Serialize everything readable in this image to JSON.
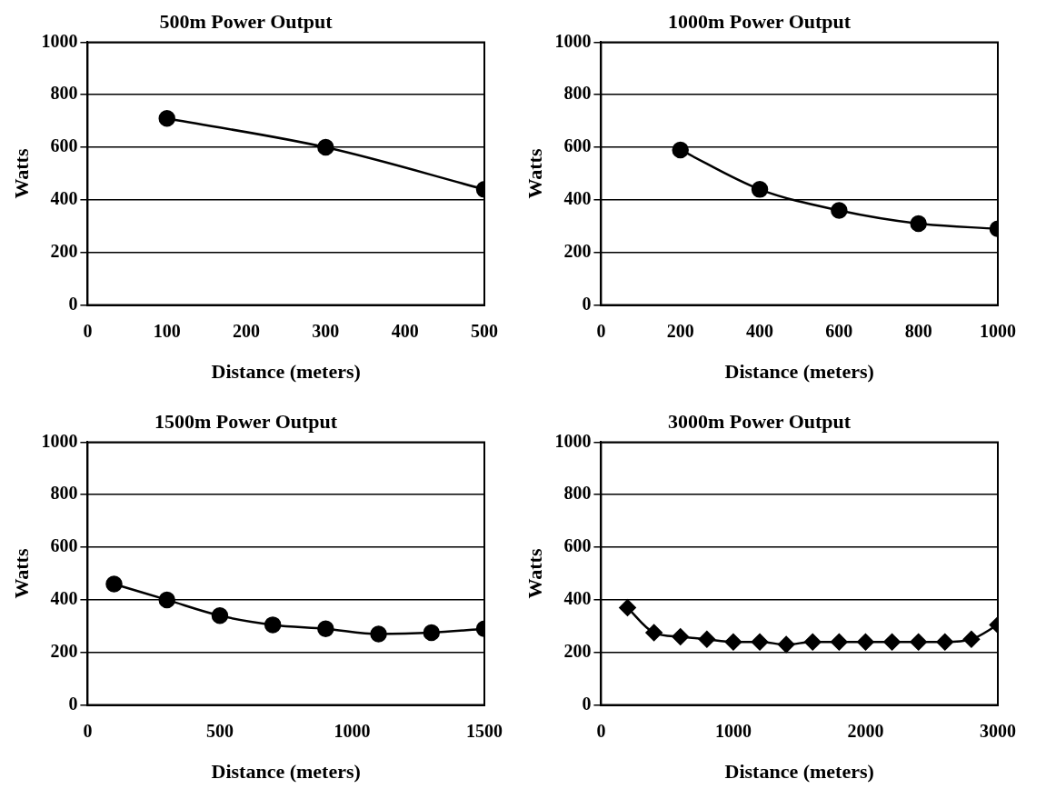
{
  "chart_data": [
    {
      "type": "line",
      "title": "500m Power Output",
      "xlabel": "Distance (meters)",
      "ylabel": "Watts",
      "x": [
        100,
        300,
        500
      ],
      "values": [
        710,
        600,
        440
      ],
      "color": "#000000",
      "xlim": [
        0,
        500
      ],
      "xticks": [
        0,
        100,
        200,
        300,
        400,
        500
      ],
      "ylim": [
        0,
        1000
      ],
      "yticks": [
        0,
        200,
        400,
        600,
        800,
        1000
      ],
      "grid": "y",
      "marker": "circle",
      "legend": false
    },
    {
      "type": "line",
      "title": "1000m Power Output",
      "xlabel": "Distance (meters)",
      "ylabel": "Watts",
      "x": [
        200,
        400,
        600,
        800,
        1000
      ],
      "values": [
        590,
        440,
        360,
        310,
        290
      ],
      "color": "#000000",
      "xlim": [
        0,
        1000
      ],
      "xticks": [
        0,
        200,
        400,
        600,
        800,
        1000
      ],
      "ylim": [
        0,
        1000
      ],
      "yticks": [
        0,
        200,
        400,
        600,
        800,
        1000
      ],
      "grid": "y",
      "marker": "circle",
      "legend": false
    },
    {
      "type": "line",
      "title": "1500m Power Output",
      "xlabel": "Distance (meters)",
      "ylabel": "Watts",
      "x": [
        100,
        300,
        500,
        700,
        900,
        1100,
        1300,
        1500
      ],
      "values": [
        460,
        400,
        340,
        305,
        290,
        270,
        275,
        290
      ],
      "color": "#000000",
      "xlim": [
        0,
        1500
      ],
      "xticks": [
        0,
        500,
        1000,
        1500
      ],
      "ylim": [
        0,
        1000
      ],
      "yticks": [
        0,
        200,
        400,
        600,
        800,
        1000
      ],
      "grid": "y",
      "marker": "circle",
      "legend": false
    },
    {
      "type": "line",
      "title": "3000m Power Output",
      "xlabel": "Distance (meters)",
      "ylabel": "Watts",
      "x": [
        200,
        400,
        600,
        800,
        1000,
        1200,
        1400,
        1600,
        1800,
        2000,
        2200,
        2400,
        2600,
        2800,
        3000
      ],
      "values": [
        370,
        275,
        260,
        250,
        240,
        240,
        230,
        240,
        240,
        240,
        240,
        240,
        240,
        250,
        305
      ],
      "color": "#000000",
      "xlim": [
        0,
        3000
      ],
      "xticks": [
        0,
        1000,
        2000,
        3000
      ],
      "ylim": [
        0,
        1000
      ],
      "yticks": [
        0,
        200,
        400,
        600,
        800,
        1000
      ],
      "grid": "y",
      "marker": "diamond",
      "legend": false
    }
  ]
}
